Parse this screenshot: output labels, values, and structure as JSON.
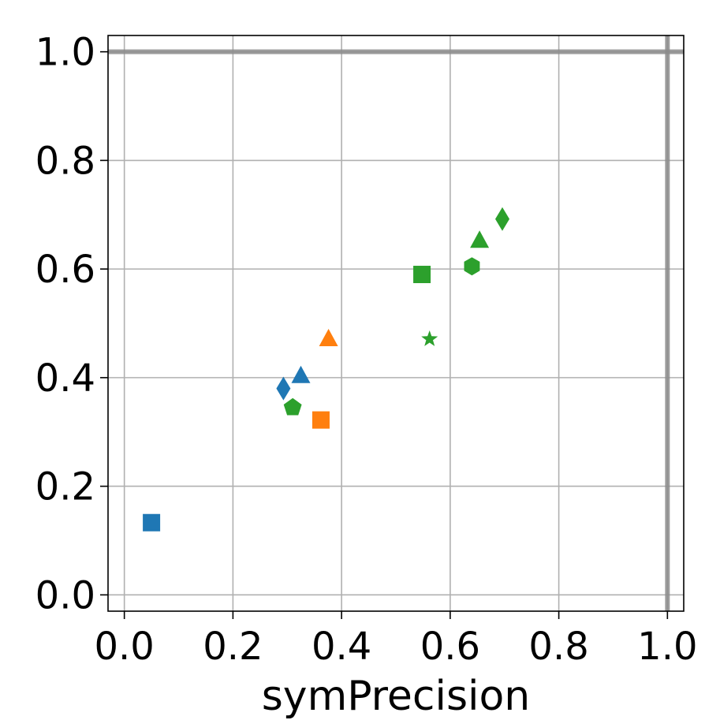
{
  "chart_data": {
    "type": "scatter",
    "xlabel": "symPrecision",
    "ylabel": "",
    "xlim": [
      -0.03,
      1.03
    ],
    "ylim": [
      -0.03,
      1.03
    ],
    "grid": true,
    "reference_lines": {
      "x": 1.0,
      "y": 1.0
    },
    "xticks": [
      "0.0",
      "0.2",
      "0.4",
      "0.6",
      "0.8",
      "1.0"
    ],
    "yticks": [
      "0.0",
      "0.2",
      "0.4",
      "0.6",
      "0.8",
      "1.0"
    ],
    "points": [
      {
        "x": 0.05,
        "y": 0.133,
        "color": "#1f77b4",
        "marker": "square"
      },
      {
        "x": 0.293,
        "y": 0.38,
        "color": "#1f77b4",
        "marker": "diamond"
      },
      {
        "x": 0.325,
        "y": 0.403,
        "color": "#1f77b4",
        "marker": "triangle"
      },
      {
        "x": 0.362,
        "y": 0.322,
        "color": "#ff7f0e",
        "marker": "square"
      },
      {
        "x": 0.376,
        "y": 0.471,
        "color": "#ff7f0e",
        "marker": "triangle"
      },
      {
        "x": 0.31,
        "y": 0.345,
        "color": "#2ca02c",
        "marker": "pentagon"
      },
      {
        "x": 0.548,
        "y": 0.59,
        "color": "#2ca02c",
        "marker": "square"
      },
      {
        "x": 0.562,
        "y": 0.471,
        "color": "#2ca02c",
        "marker": "star"
      },
      {
        "x": 0.64,
        "y": 0.605,
        "color": "#2ca02c",
        "marker": "hexagon"
      },
      {
        "x": 0.654,
        "y": 0.652,
        "color": "#2ca02c",
        "marker": "triangle"
      },
      {
        "x": 0.696,
        "y": 0.692,
        "color": "#2ca02c",
        "marker": "diamond"
      }
    ]
  }
}
